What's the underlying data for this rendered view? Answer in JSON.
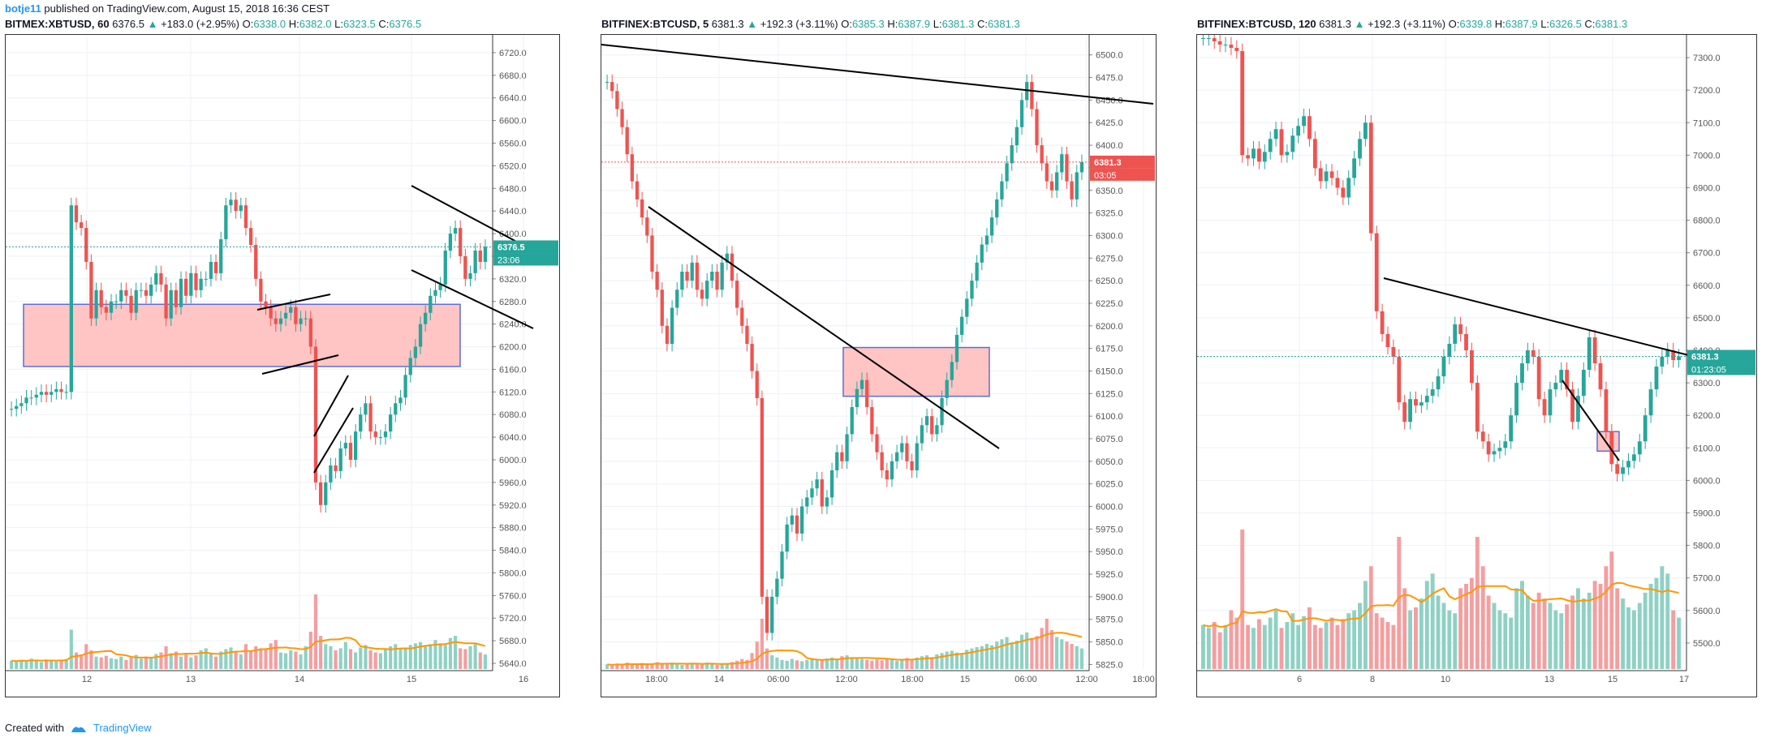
{
  "header": {
    "author": "botje11",
    "published": " published on TradingView.com, August 15, 2018 16:36 CEST"
  },
  "footer": {
    "created_with": "Created with",
    "brand": "TradingView"
  },
  "colors": {
    "up": "#26a69a",
    "down": "#ef5350",
    "zone_fill": "#ffc4c4",
    "zone_border": "#5b6fd6",
    "avg_line": "#ff9800"
  },
  "chart_data": [
    {
      "type": "candlestick",
      "symbol": "BITMEX:XBTUSD, 60",
      "last": "6376.5",
      "change": "+183.0 (+2.95%)",
      "O": "6338.0",
      "H": "6382.0",
      "L": "6323.5",
      "C": "6376.5",
      "price_label": "6376.5",
      "timer_label": "23:06",
      "y_ticks": [
        "6720.0",
        "6680.0",
        "6640.0",
        "6600.0",
        "6560.0",
        "6520.0",
        "6480.0",
        "6440.0",
        "6400.0",
        "6360.0",
        "6320.0",
        "6280.0",
        "6240.0",
        "6200.0",
        "6160.0",
        "6120.0",
        "6080.0",
        "6040.0",
        "6000.0",
        "5960.0",
        "5920.0",
        "5880.0",
        "5840.0",
        "5800.0",
        "5760.0",
        "5720.0",
        "5680.0",
        "5640.0"
      ],
      "ylim": [
        5630,
        6740
      ],
      "x_ticks": [
        "12",
        "13",
        "14",
        "15",
        "16"
      ],
      "last_price": 6376.5,
      "zone": {
        "low": 6165,
        "high": 6275
      },
      "closes": [
        6090,
        6095,
        6100,
        6110,
        6110,
        6115,
        6120,
        6115,
        6120,
        6125,
        6120,
        6120,
        6450,
        6420,
        6410,
        6350,
        6250,
        6300,
        6270,
        6260,
        6280,
        6280,
        6300,
        6290,
        6260,
        6300,
        6300,
        6290,
        6310,
        6330,
        6310,
        6250,
        6300,
        6270,
        6320,
        6290,
        6330,
        6300,
        6320,
        6320,
        6350,
        6330,
        6390,
        6450,
        6460,
        6440,
        6450,
        6410,
        6380,
        6320,
        6280,
        6270,
        6250,
        6240,
        6250,
        6260,
        6270,
        6240,
        6250,
        6250,
        6200,
        5960,
        5920,
        5960,
        5990,
        5980,
        6020,
        6030,
        6000,
        6050,
        6080,
        6100,
        6050,
        6040,
        6040,
        6050,
        6080,
        6100,
        6110,
        6150,
        6180,
        6200,
        6240,
        6260,
        6290,
        6300,
        6310,
        6370,
        6400,
        6410,
        6360,
        6320,
        6330,
        6370,
        6350,
        6376.5
      ],
      "volumes": [
        20,
        18,
        22,
        19,
        25,
        21,
        17,
        23,
        20,
        18,
        22,
        24,
        95,
        40,
        35,
        60,
        45,
        30,
        28,
        32,
        26,
        24,
        30,
        22,
        28,
        34,
        25,
        30,
        28,
        36,
        40,
        55,
        38,
        42,
        30,
        35,
        28,
        33,
        45,
        50,
        38,
        30,
        42,
        48,
        52,
        40,
        35,
        60,
        45,
        55,
        50,
        48,
        62,
        70,
        40,
        38,
        45,
        42,
        35,
        55,
        90,
        180,
        80,
        60,
        55,
        45,
        50,
        65,
        48,
        40,
        52,
        58,
        45,
        40,
        38,
        50,
        55,
        60,
        48,
        52,
        58,
        62,
        65,
        55,
        60,
        70,
        62,
        58,
        75,
        80,
        50,
        48,
        55,
        60,
        40,
        35
      ]
    },
    {
      "type": "candlestick",
      "symbol": "BITFINEX:BTCUSD, 5",
      "last": "6381.3",
      "change": "+192.3 (+3.11%)",
      "O": "6385.3",
      "H": "6387.9",
      "L": "6381.3",
      "C": "6381.3",
      "price_label": "6381.3",
      "timer_label": "03:05",
      "y_ticks": [
        "6500.0",
        "6475.0",
        "6450.0",
        "6425.0",
        "6400.0",
        "6375.0",
        "6350.0",
        "6325.0",
        "6300.0",
        "6275.0",
        "6250.0",
        "6225.0",
        "6200.0",
        "6175.0",
        "6150.0",
        "6125.0",
        "6100.0",
        "6075.0",
        "6050.0",
        "6025.0",
        "6000.0",
        "5975.0",
        "5950.0",
        "5925.0",
        "5900.0",
        "5875.0",
        "5850.0",
        "5825.0"
      ],
      "ylim": [
        5820,
        6515
      ],
      "x_ticks": [
        "18:00",
        "14",
        "06:00",
        "12:00",
        "18:00",
        "15",
        "06:00",
        "12:00",
        "18:00"
      ],
      "last_price": 6381.3,
      "zone": {
        "low": 6122,
        "high": 6176
      },
      "closes": [
        6470,
        6460,
        6440,
        6420,
        6390,
        6360,
        6340,
        6320,
        6300,
        6260,
        6240,
        6200,
        6180,
        6220,
        6240,
        6260,
        6250,
        6270,
        6240,
        6230,
        6250,
        6260,
        6240,
        6270,
        6280,
        6250,
        6220,
        6200,
        6180,
        6150,
        6120,
        5900,
        5860,
        5900,
        5920,
        5950,
        5980,
        5990,
        5970,
        6000,
        6010,
        6020,
        6030,
        6000,
        6010,
        6040,
        6060,
        6050,
        6080,
        6110,
        6130,
        6140,
        6110,
        6080,
        6060,
        6040,
        6030,
        6050,
        6060,
        6070,
        6050,
        6040,
        6070,
        6090,
        6100,
        6080,
        6090,
        6120,
        6140,
        6160,
        6190,
        6210,
        6230,
        6250,
        6270,
        6290,
        6300,
        6320,
        6340,
        6360,
        6380,
        6400,
        6420,
        6450,
        6470,
        6440,
        6400,
        6380,
        6360,
        6350,
        6370,
        6390,
        6360,
        6340,
        6370,
        6381.3
      ],
      "volumes": [
        10,
        8,
        12,
        9,
        14,
        11,
        10,
        13,
        9,
        12,
        15,
        11,
        10,
        14,
        12,
        9,
        11,
        13,
        10,
        12,
        14,
        11,
        9,
        10,
        12,
        15,
        18,
        22,
        20,
        35,
        60,
        110,
        45,
        30,
        25,
        20,
        18,
        22,
        19,
        17,
        20,
        24,
        21,
        19,
        23,
        25,
        22,
        28,
        30,
        26,
        24,
        22,
        20,
        18,
        21,
        19,
        23,
        20,
        18,
        22,
        24,
        21,
        25,
        28,
        30,
        26,
        32,
        35,
        38,
        40,
        36,
        34,
        42,
        45,
        48,
        50,
        55,
        52,
        60,
        65,
        70,
        58,
        62,
        75,
        80,
        68,
        72,
        90,
        110,
        85,
        70,
        65,
        60,
        55,
        50,
        45
      ]
    },
    {
      "type": "candlestick",
      "symbol": "BITFINEX:BTCUSD, 120",
      "last": "6381.3",
      "change": "+192.3 (+3.11%)",
      "O": "6339.8",
      "H": "6387.9",
      "L": "6326.5",
      "C": "6381.3",
      "price_label": "6381.3",
      "timer_label": "01:23:05",
      "y_ticks": [
        "7300.0",
        "7200.0",
        "7100.0",
        "7000.0",
        "6900.0",
        "6800.0",
        "6700.0",
        "6600.0",
        "6500.0",
        "6400.0",
        "6300.0",
        "6200.0",
        "6100.0",
        "6000.0",
        "5900.0",
        "5800.0",
        "5700.0",
        "5600.0",
        "5500.0"
      ],
      "ylim": [
        5420,
        7350
      ],
      "x_ticks": [
        "6",
        "8",
        "10",
        "13",
        "15",
        "17"
      ],
      "last_price": 6381.3,
      "zone": {
        "low": 6090,
        "high": 6150
      },
      "closes": [
        7360,
        7360,
        7350,
        7340,
        7340,
        7330,
        7320,
        7000,
        6990,
        7020,
        6980,
        7010,
        7050,
        7080,
        7000,
        7010,
        7060,
        7090,
        7120,
        7050,
        6960,
        6920,
        6950,
        6930,
        6900,
        6870,
        6930,
        6990,
        7050,
        7100,
        6760,
        6520,
        6450,
        6410,
        6380,
        6240,
        6180,
        6250,
        6230,
        6240,
        6260,
        6280,
        6320,
        6380,
        6420,
        6480,
        6450,
        6400,
        6300,
        6150,
        6120,
        6080,
        6090,
        6100,
        6120,
        6200,
        6300,
        6360,
        6400,
        6380,
        6250,
        6200,
        6280,
        6300,
        6340,
        6280,
        6180,
        6260,
        6340,
        6440,
        6360,
        6280,
        6150,
        6050,
        6020,
        6040,
        6060,
        6080,
        6120,
        6200,
        6280,
        6350,
        6380,
        6400,
        6370,
        6381.3
      ],
      "volumes": [
        30,
        28,
        32,
        25,
        30,
        40,
        35,
        95,
        30,
        28,
        34,
        30,
        35,
        40,
        28,
        32,
        38,
        30,
        36,
        42,
        30,
        28,
        32,
        35,
        30,
        34,
        38,
        40,
        45,
        60,
        70,
        38,
        35,
        32,
        30,
        90,
        55,
        40,
        42,
        48,
        60,
        65,
        50,
        45,
        40,
        38,
        55,
        58,
        62,
        90,
        70,
        50,
        45,
        40,
        38,
        35,
        55,
        60,
        50,
        45,
        52,
        48,
        45,
        40,
        38,
        44,
        50,
        55,
        48,
        52,
        60,
        58,
        70,
        80,
        55,
        48,
        42,
        40,
        45,
        52,
        58,
        62,
        70,
        65,
        40,
        35
      ]
    }
  ]
}
